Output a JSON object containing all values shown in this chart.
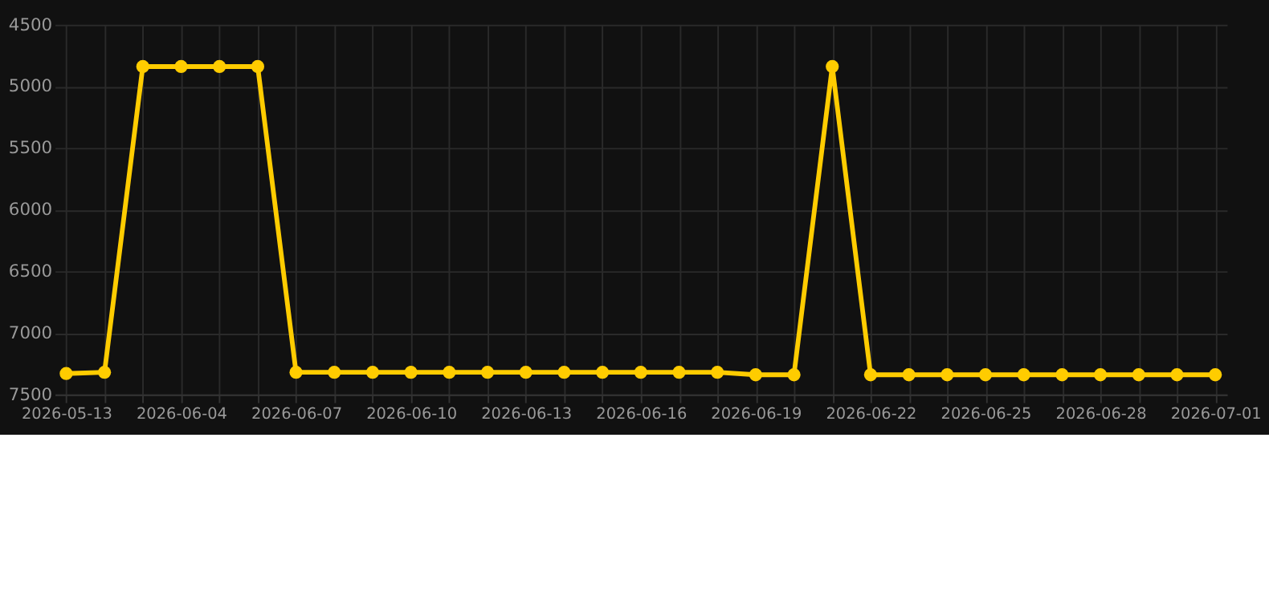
{
  "chart_data": {
    "type": "line",
    "categories": [
      "2026-05-13",
      null,
      null,
      "2026-06-04",
      null,
      null,
      "2026-06-07",
      null,
      null,
      "2026-06-10",
      null,
      null,
      "2026-06-13",
      null,
      null,
      "2026-06-16",
      null,
      null,
      "2026-06-19",
      null,
      null,
      "2026-06-22",
      null,
      null,
      "2026-06-25",
      null,
      null,
      "2026-06-28",
      null,
      null,
      "2026-07-01"
    ],
    "series": [
      {
        "color": "#ffcc00",
        "values": [
          7330,
          7320,
          4840,
          4840,
          4840,
          4840,
          7320,
          7320,
          7320,
          7320,
          7320,
          7320,
          7320,
          7320,
          7320,
          7320,
          7320,
          7320,
          7340,
          7340,
          4840,
          7340,
          7340,
          7340,
          7340,
          7340,
          7340,
          7340,
          7340,
          7340,
          7340
        ]
      }
    ],
    "ylim": [
      7500,
      4500
    ],
    "yticks": [
      4500,
      5000,
      5500,
      6000,
      6500,
      7000,
      7500
    ],
    "grid": true,
    "marker": "circle"
  }
}
